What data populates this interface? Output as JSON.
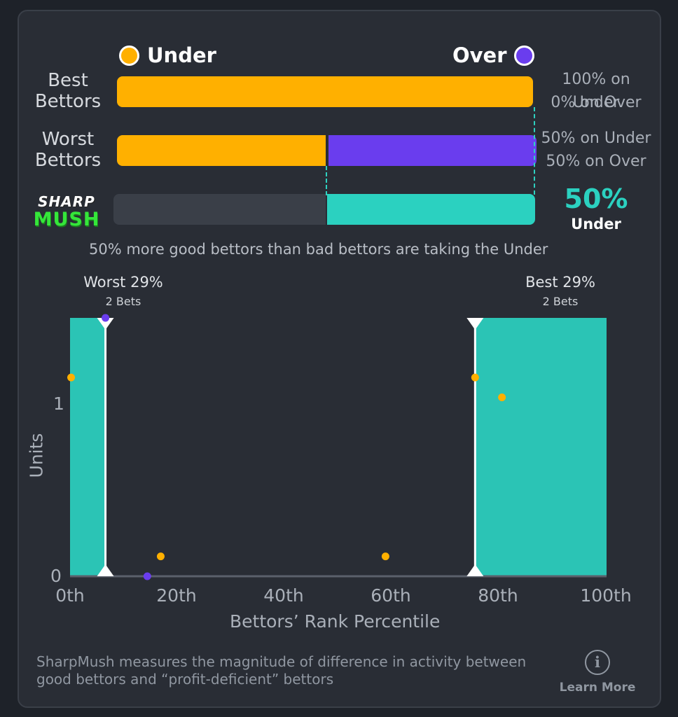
{
  "legend": {
    "under_label": "Under",
    "over_label": "Over",
    "under_color": "#FFB000",
    "over_color": "#6A3DEE"
  },
  "rows": {
    "best": {
      "label": "Best Bettors",
      "under_pct_text": "100% on Under",
      "over_pct_text": "0% on Over",
      "under_share": 1.0
    },
    "worst": {
      "label": "Worst Bettors",
      "under_pct_text": "50% on Under",
      "over_pct_text": "50% on Over",
      "under_share": 0.5
    }
  },
  "sharpmush": {
    "logo_text_top": "SHARP",
    "logo_text_bottom": "MUSH",
    "percent": "50%",
    "side": "Under",
    "share": 0.5,
    "color": "#2BD1C0"
  },
  "summary_text": "50% more good bettors than bad bettors are taking the Under",
  "chart_data": {
    "type": "scatter",
    "xlabel": "Bettors’ Rank Percentile",
    "ylabel": "Units",
    "xlim": [
      0,
      100
    ],
    "ylim": [
      0,
      1.3
    ],
    "x_ticks": [
      "0th",
      "20th",
      "40th",
      "60th",
      "80th",
      "100th"
    ],
    "y_ticks": [
      "0",
      "1"
    ],
    "worst_bucket": {
      "title": "Worst 29%",
      "subtitle": "2 Bets",
      "x_range": [
        0,
        6.6
      ]
    },
    "best_bucket": {
      "title": "Best 29%",
      "subtitle": "2 Bets",
      "x_range": [
        75.5,
        100
      ]
    },
    "series": [
      {
        "name": "Under",
        "color": "#FFB000",
        "points": [
          [
            0.2,
            1.0
          ],
          [
            16.9,
            0.1
          ],
          [
            58.8,
            0.1
          ],
          [
            75.5,
            1.0
          ],
          [
            80.5,
            0.9
          ]
        ]
      },
      {
        "name": "Over",
        "color": "#6A3DEE",
        "points": [
          [
            6.6,
            1.3
          ],
          [
            14.4,
            0.0
          ]
        ]
      }
    ]
  },
  "footer": {
    "text": "SharpMush measures the magnitude of difference in activity between good bettors and “profit-deficient” bettors",
    "learn_more": "Learn More",
    "info_glyph": "i"
  }
}
